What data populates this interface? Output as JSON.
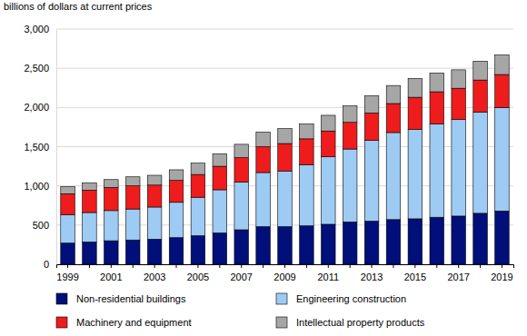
{
  "chart_data": {
    "type": "bar",
    "stacked": true,
    "grid": true,
    "legend": "bottom",
    "y_label": "billions of dollars at current prices",
    "categories": [
      "1999",
      null,
      "2001",
      null,
      "2003",
      null,
      "2005",
      null,
      "2007",
      null,
      "2009",
      null,
      "2011",
      null,
      "2013",
      null,
      "2015",
      null,
      "2017",
      null,
      "2019"
    ],
    "ylim": [
      0,
      3000
    ],
    "yticks": [
      0,
      500,
      {
        "value": 1000,
        "label": "1,000"
      },
      {
        "value": 1500,
        "label": "1,500"
      },
      {
        "value": 2000,
        "label": "2,000"
      },
      {
        "value": 2500,
        "label": "2,500"
      },
      {
        "value": 3000,
        "label": "3,000"
      }
    ],
    "series": [
      {
        "name": "Non-residential buildings",
        "color": "#000f7a",
        "values": [
          270,
          285,
          300,
          310,
          320,
          340,
          365,
          400,
          440,
          480,
          480,
          490,
          510,
          540,
          550,
          570,
          580,
          600,
          615,
          650,
          680
        ]
      },
      {
        "name": "Engineering construction",
        "color": "#9ecbf3",
        "values": [
          360,
          375,
          385,
          395,
          410,
          450,
          490,
          550,
          610,
          690,
          710,
          780,
          860,
          930,
          1030,
          1110,
          1140,
          1190,
          1230,
          1290,
          1320
        ]
      },
      {
        "name": "Machinery and equipment",
        "color": "#ee1c1c",
        "values": [
          270,
          285,
          295,
          295,
          280,
          280,
          290,
          300,
          310,
          330,
          350,
          330,
          330,
          340,
          350,
          370,
          410,
          410,
          400,
          410,
          420
        ]
      },
      {
        "name": "Intellectual property products",
        "color": "#a6a6a6",
        "values": [
          90,
          95,
          100,
          115,
          125,
          135,
          145,
          160,
          170,
          185,
          190,
          190,
          200,
          210,
          220,
          230,
          240,
          240,
          235,
          240,
          250
        ]
      }
    ]
  }
}
